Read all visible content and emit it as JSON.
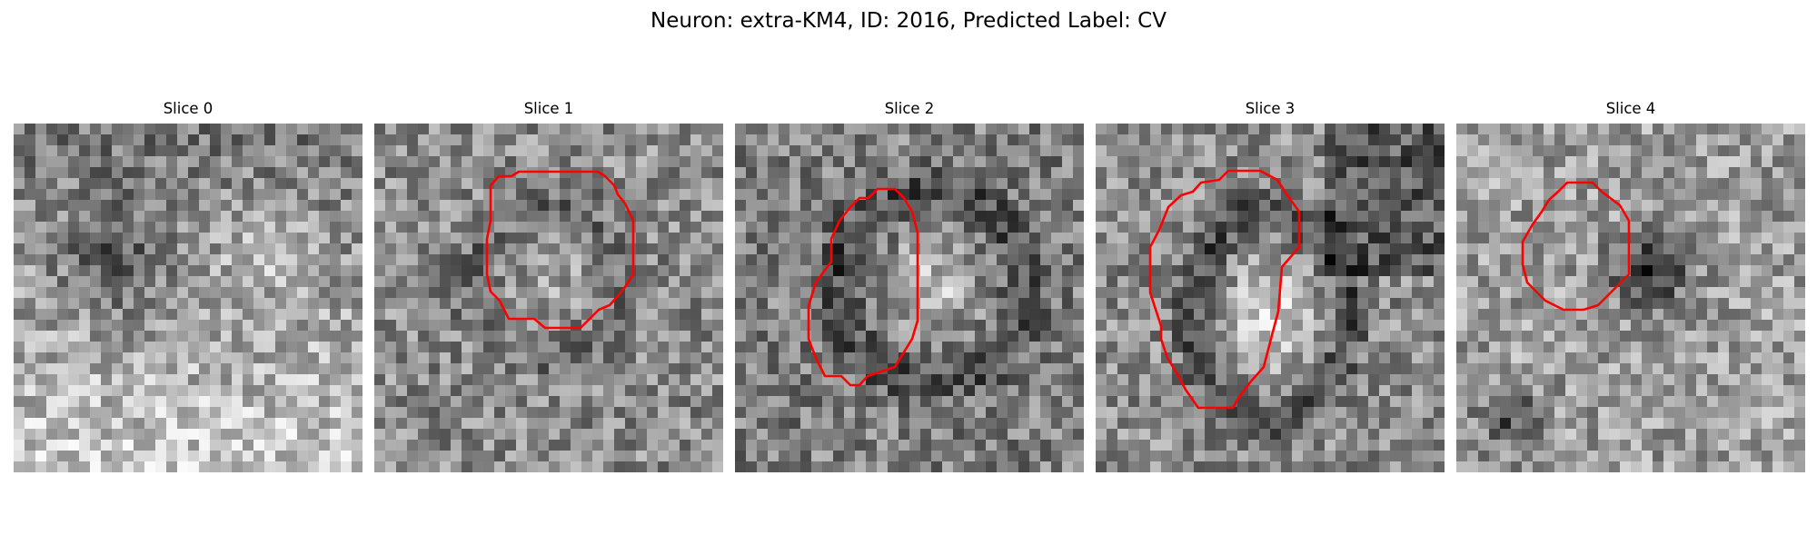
{
  "figure": {
    "title": "Neuron: extra-KM4, ID: 2016, Predicted Label: CV"
  },
  "colors": {
    "contour": "#ff0000",
    "background": "#ffffff"
  },
  "panels": [
    {
      "title": "Slice 0",
      "has_contour": false
    },
    {
      "title": "Slice 1",
      "has_contour": true
    },
    {
      "title": "Slice 2",
      "has_contour": true
    },
    {
      "title": "Slice 3",
      "has_contour": true
    },
    {
      "title": "Slice 4",
      "has_contour": true
    }
  ]
}
